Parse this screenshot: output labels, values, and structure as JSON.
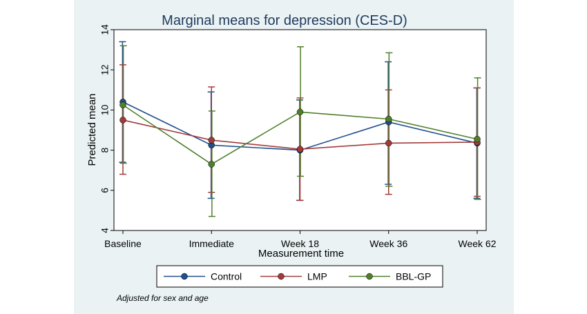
{
  "chart_data": {
    "type": "line",
    "title": "Marginal means for depression (CES-D)",
    "xlabel": "Measurement time",
    "ylabel": "Predicted mean",
    "categories": [
      "Baseline",
      "Immediate",
      "Week 18",
      "Week 36",
      "Week 62"
    ],
    "ylim": [
      4,
      14
    ],
    "yticks": [
      4,
      6,
      8,
      10,
      12,
      14
    ],
    "grid": false,
    "legend_position": "bottom",
    "note": "Adjusted for sex and age",
    "series": [
      {
        "name": "Control",
        "color": "#1f4e8c",
        "values": [
          10.4,
          8.25,
          8.0,
          9.4,
          8.35
        ],
        "ci_low": [
          7.4,
          5.6,
          5.5,
          6.3,
          5.6
        ],
        "ci_high": [
          13.4,
          10.9,
          10.5,
          12.4,
          11.1
        ]
      },
      {
        "name": "LMP",
        "color": "#a23a3a",
        "values": [
          9.5,
          8.5,
          8.05,
          8.35,
          8.4
        ],
        "ci_low": [
          6.8,
          5.9,
          5.5,
          5.8,
          5.7
        ],
        "ci_high": [
          12.25,
          11.15,
          10.6,
          11.0,
          11.1
        ]
      },
      {
        "name": "BBL-GP",
        "color": "#4f7f2a",
        "values": [
          10.25,
          7.3,
          9.9,
          9.55,
          8.55
        ],
        "ci_low": [
          7.35,
          4.7,
          6.7,
          6.2,
          5.55
        ],
        "ci_high": [
          13.2,
          9.95,
          13.15,
          12.85,
          11.6
        ]
      }
    ]
  }
}
